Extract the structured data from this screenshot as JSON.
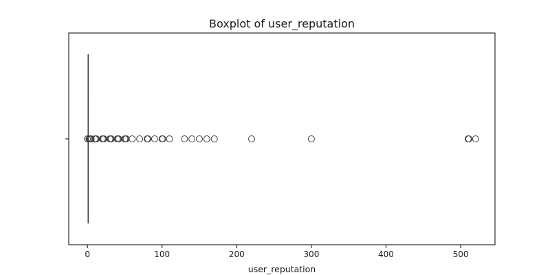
{
  "chart_data": {
    "type": "boxplot",
    "title": "Boxplot of user_reputation",
    "xlabel": "user_reputation",
    "ylabel": "",
    "xlim": [
      -25,
      546
    ],
    "xticks": [
      0,
      100,
      200,
      300,
      400,
      500
    ],
    "orientation": "horizontal",
    "grid": false,
    "box": {
      "q1": 1,
      "median": 1,
      "q3": 1,
      "whisker_low": 1,
      "whisker_high": 1
    },
    "outliers": [
      0,
      2,
      3,
      4,
      5,
      10,
      11,
      12,
      20,
      21,
      22,
      30,
      31,
      32,
      40,
      41,
      42,
      50,
      51,
      52,
      60,
      70,
      80,
      81,
      90,
      100,
      101,
      110,
      130,
      140,
      150,
      160,
      170,
      220,
      300,
      510,
      511,
      520
    ],
    "colors": {
      "box_edge": "#3d3d3d",
      "marker_edge": "#3d3d3d",
      "axes": "#000000"
    }
  }
}
